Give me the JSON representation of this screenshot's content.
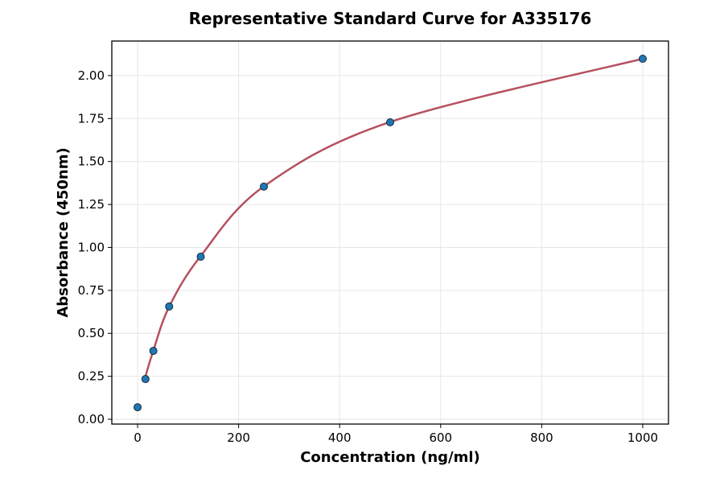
{
  "chart_data": {
    "type": "scatter",
    "title": "Representative Standard Curve for A335176",
    "xlabel": "Concentration (ng/ml)",
    "ylabel": "Absorbance (450nm)",
    "xlim": [
      -51,
      1051
    ],
    "ylim": [
      -0.028,
      2.201
    ],
    "xticks": [
      0,
      200,
      400,
      600,
      800,
      1000
    ],
    "xtick_labels": [
      "0",
      "200",
      "400",
      "600",
      "800",
      "1000"
    ],
    "yticks": [
      0,
      0.25,
      0.5,
      0.75,
      1.0,
      1.25,
      1.5,
      1.75,
      2.0
    ],
    "ytick_labels": [
      "0.00",
      "0.25",
      "0.50",
      "0.75",
      "1.00",
      "1.25",
      "1.50",
      "1.75",
      "2.00"
    ],
    "grid": true,
    "series": [
      {
        "name": "Standards",
        "x": [
          0,
          15.625,
          31.25,
          62.5,
          125,
          250,
          500,
          1000
        ],
        "y": [
          0.07,
          0.234,
          0.398,
          0.656,
          0.946,
          1.354,
          1.728,
          2.098
        ],
        "color": "#1f77b4"
      },
      {
        "name": "Fitted curve",
        "x": [
          15.625,
          31.25,
          62.5,
          125,
          250,
          500,
          1000
        ],
        "y": [
          0.25,
          0.4,
          0.655,
          0.95,
          1.355,
          1.73,
          2.098
        ],
        "color": "#b5515f"
      }
    ]
  }
}
